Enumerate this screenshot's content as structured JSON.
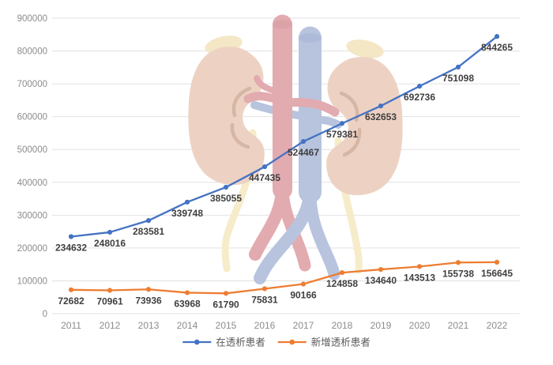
{
  "chart_data": {
    "type": "line",
    "x": [
      "2011",
      "2012",
      "2013",
      "2014",
      "2015",
      "2016",
      "2017",
      "2018",
      "2019",
      "2020",
      "2021",
      "2022"
    ],
    "series": [
      {
        "key": "on-dialysis-patients",
        "name": "在透析患者",
        "color": "#4472c4",
        "values": [
          234632,
          248016,
          283581,
          339748,
          385055,
          447435,
          524467,
          579381,
          632653,
          692736,
          751098,
          844265
        ]
      },
      {
        "key": "new-dialysis-patients",
        "name": "新增透析患者",
        "color": "#ed7d31",
        "values": [
          72682,
          70961,
          73936,
          63968,
          61790,
          75831,
          90166,
          124858,
          134640,
          143513,
          155738,
          156645
        ]
      }
    ],
    "ylim": [
      0,
      900000
    ],
    "ytick_step": 100000,
    "grid": true,
    "data_labels": true,
    "legend_position": "bottom"
  },
  "axis": {
    "tick_label_color": "#8c8c8c",
    "gridline_color": "#e2e2e2",
    "data_label_color": "#3f3f3f",
    "legend_text_color": "#595959"
  },
  "watermark": {
    "name": "kidney-anatomy-illustration",
    "colors": {
      "kidney": "#edd2c3",
      "detail": "#d6b6a5",
      "artery": "#e2abb0",
      "artery_cap": "#dba2a8",
      "vein": "#b8c4de",
      "vein_cap": "#adbad8",
      "ureter": "#f6ecca",
      "adrenal": "#f3e7c6"
    }
  }
}
